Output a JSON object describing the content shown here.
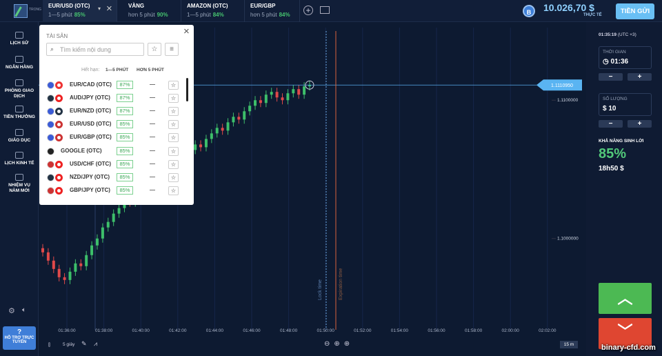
{
  "topbar": {
    "logo": "TRONG",
    "tabs": [
      {
        "name": "EUR/USD (OTC)",
        "expiry": "1—5 phút",
        "payout": "85%"
      },
      {
        "name": "VÀNG",
        "expiry": "hơn 5 phút",
        "payout": "90%"
      },
      {
        "name": "AMAZON (OTC)",
        "expiry": "1—5 phút",
        "payout": "84%"
      },
      {
        "name": "EUR/GBP",
        "expiry": "hơn 5 phút",
        "payout": "84%"
      }
    ],
    "balance": "10.026,70 $",
    "account": "THỰC TẾ",
    "deposit": "TIỀN GỬI"
  },
  "sidebar": {
    "items": [
      "LỊCH SỬ",
      "NGÂN HÀNG",
      "PHÒNG GIAO DỊCH",
      "TIỀN THƯỞNG",
      "GIÁO DỤC",
      "LỊCH KINH TẾ",
      "NHIỆM VỤ NĂM MỚI"
    ],
    "help": "HỖ TRỢ TRỰC TUYẾN"
  },
  "assets_panel": {
    "title": "TÀI SẢN",
    "search_placeholder": "Tìm kiếm nội dung",
    "expiry_label": "Hết hạn:",
    "expiry_options": [
      "1—5 PHÚT",
      "HƠN 5 PHÚT"
    ],
    "rows": [
      {
        "name": "EUR/CAD (OTC)",
        "payout": "87%",
        "change": "—"
      },
      {
        "name": "AUD/JPY (OTC)",
        "payout": "87%",
        "change": "—"
      },
      {
        "name": "EUR/NZD (OTC)",
        "payout": "87%",
        "change": "—"
      },
      {
        "name": "EUR/USD (OTC)",
        "payout": "85%",
        "change": "—"
      },
      {
        "name": "EUR/GBP (OTC)",
        "payout": "85%",
        "change": "—"
      },
      {
        "name": "GOOGLE (OTC)",
        "payout": "85%",
        "change": "—"
      },
      {
        "name": "USD/CHF (OTC)",
        "payout": "85%",
        "change": "—"
      },
      {
        "name": "NZD/JPY (OTC)",
        "payout": "85%",
        "change": "—"
      },
      {
        "name": "GBP/JPY (OTC)",
        "payout": "85%",
        "change": "—"
      }
    ]
  },
  "chart": {
    "type": "candlestick",
    "ylim": [
      1.0938,
      1.115
    ],
    "yticks": [
      {
        "value": 1.11,
        "label": "1.1100000"
      },
      {
        "value": 1.1,
        "label": "1.1000000"
      }
    ],
    "current_price": {
      "value": 1.111095,
      "label": "1.1110950"
    },
    "xticks": [
      "01:36:00",
      "01:38:00",
      "01:40:00",
      "01:42:00",
      "01:44:00",
      "01:46:00",
      "01:48:00",
      "01:50:00",
      "01:52:00",
      "01:54:00",
      "01:56:00",
      "01:58:00",
      "02:00:00",
      "02:02:00"
    ],
    "lock_label": "Lock time",
    "expiration_label": "Expiration time",
    "interval": "5 giây",
    "zoom": "15 m",
    "candles": [
      [
        1.0993,
        1.0996,
        1.0987,
        1.099
      ],
      [
        1.099,
        1.0993,
        1.0981,
        1.0984
      ],
      [
        1.0984,
        1.0987,
        1.0975,
        1.0978
      ],
      [
        1.0978,
        1.0981,
        1.0969,
        1.0972
      ],
      [
        1.0972,
        1.0975,
        1.0967,
        1.097
      ],
      [
        1.097,
        1.0979,
        1.0967,
        1.0976
      ],
      [
        1.0976,
        1.0985,
        1.0973,
        1.0982
      ],
      [
        1.0982,
        1.0985,
        1.0977,
        1.098
      ],
      [
        1.098,
        1.0991,
        1.0977,
        1.0988
      ],
      [
        1.0988,
        1.0998,
        1.0985,
        1.0995
      ],
      [
        1.0995,
        1.1003,
        1.0992,
        1.1
      ],
      [
        1.1,
        1.1011,
        1.0997,
        1.1008
      ],
      [
        1.1008,
        1.1015,
        1.1005,
        1.1012
      ],
      [
        1.1012,
        1.1021,
        1.1009,
        1.1018
      ],
      [
        1.1018,
        1.1025,
        1.1015,
        1.1022
      ],
      [
        1.1022,
        1.1031,
        1.1019,
        1.1028
      ],
      [
        1.1028,
        1.1031,
        1.1023,
        1.1026
      ],
      [
        1.1026,
        1.1035,
        1.1023,
        1.1032
      ],
      [
        1.1032,
        1.1041,
        1.1029,
        1.1038
      ],
      [
        1.1038,
        1.1045,
        1.1035,
        1.1042
      ],
      [
        1.1042,
        1.1045,
        1.1037,
        1.104
      ],
      [
        1.104,
        1.1051,
        1.1037,
        1.1048
      ],
      [
        1.1048,
        1.1055,
        1.1045,
        1.1052
      ],
      [
        1.1052,
        1.1055,
        1.1047,
        1.105
      ],
      [
        1.105,
        1.1059,
        1.1047,
        1.1056
      ],
      [
        1.1056,
        1.1063,
        1.1053,
        1.106
      ],
      [
        1.106,
        1.1063,
        1.1055,
        1.1058
      ],
      [
        1.1058,
        1.1067,
        1.1055,
        1.1064
      ],
      [
        1.1064,
        1.1071,
        1.1061,
        1.1068
      ],
      [
        1.1068,
        1.1071,
        1.1063,
        1.1066
      ],
      [
        1.1066,
        1.1075,
        1.1063,
        1.1072
      ],
      [
        1.1072,
        1.1079,
        1.1069,
        1.1076
      ],
      [
        1.1076,
        1.1083,
        1.1073,
        1.108
      ],
      [
        1.108,
        1.1083,
        1.1075,
        1.1078
      ],
      [
        1.1078,
        1.1087,
        1.1075,
        1.1084
      ],
      [
        1.1084,
        1.1091,
        1.1081,
        1.1088
      ],
      [
        1.1088,
        1.1091,
        1.1083,
        1.1086
      ],
      [
        1.1086,
        1.1095,
        1.1083,
        1.1092
      ],
      [
        1.1092,
        1.1099,
        1.1089,
        1.1096
      ],
      [
        1.1096,
        1.1103,
        1.1093,
        1.11
      ],
      [
        1.11,
        1.1103,
        1.1095,
        1.1098
      ],
      [
        1.1098,
        1.1107,
        1.1095,
        1.1104
      ],
      [
        1.1104,
        1.1109,
        1.1101,
        1.1106
      ],
      [
        1.1106,
        1.1109,
        1.1099,
        1.1102
      ],
      [
        1.1102,
        1.1105,
        1.1097,
        1.11
      ],
      [
        1.11,
        1.1108,
        1.1097,
        1.1105
      ],
      [
        1.1105,
        1.1111,
        1.1102,
        1.1108
      ],
      [
        1.1108,
        1.1111,
        1.1101,
        1.1104
      ],
      [
        1.1104,
        1.1113,
        1.1101,
        1.111
      ],
      [
        1.111,
        1.1114,
        1.1107,
        1.1111
      ]
    ]
  },
  "trade_panel": {
    "clock": "01:35:19",
    "timezone": "(UTC +3)",
    "time_label": "THỜI GIAN",
    "time_value": "01:36",
    "amount_label": "SỐ LƯỢNG",
    "amount_value": "$ 10",
    "profit_label": "KHẢ NĂNG SINH LỜI",
    "profit_percent": "85%",
    "profit_amount": "18h50 $"
  },
  "watermark": "binary-cfd.com"
}
